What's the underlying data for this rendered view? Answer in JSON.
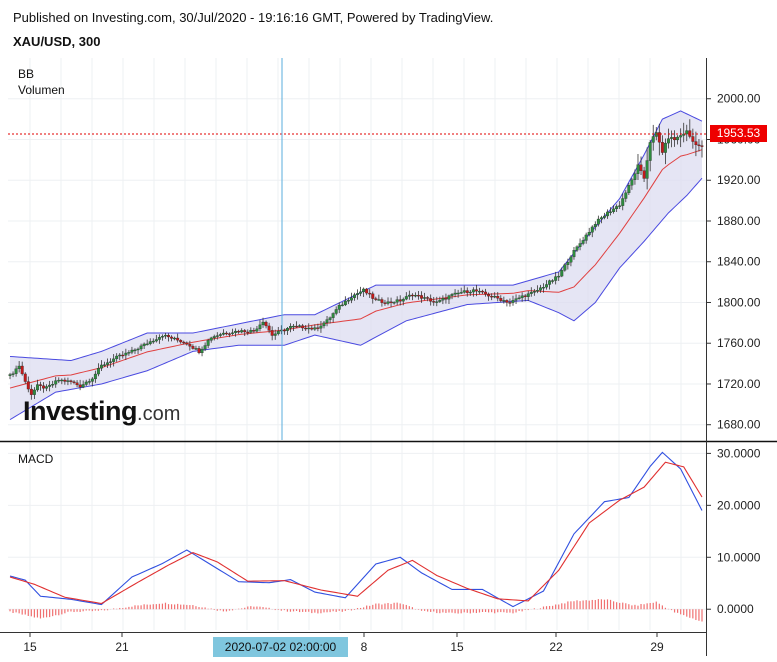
{
  "header": {
    "published": "Published on Investing.com, 30/Jul/2020 - 19:16:16 GMT, Powered by TradingView.",
    "symbol": "XAU/USD, 300"
  },
  "price_panel": {
    "indicator_1": "BB",
    "indicator_2": "Volumen",
    "current_price": "1953.53",
    "watermark_main": "Investing",
    "watermark_suffix": ".com"
  },
  "macd_panel": {
    "label": "MACD"
  },
  "crosshair": {
    "date_label": "2020-07-02 02:00:00"
  },
  "colors": {
    "up": "#2e8b3e",
    "down": "#c21b1b",
    "band": "#4a4ae0",
    "band_fill": "#dcdcf0",
    "basis": "#e04040",
    "macd": "#3050e0",
    "signal": "#e03030",
    "hist": "#f07070",
    "price_line": "#e00000"
  },
  "chart_data": [
    {
      "type": "candlestick",
      "title": "XAU/USD, 300",
      "indicators": [
        "BB",
        "Volumen"
      ],
      "y_ticks": [
        "1680.00",
        "1720.00",
        "1760.00",
        "1800.00",
        "1840.00",
        "1880.00",
        "1920.00",
        "1960.00",
        "2000.00"
      ],
      "ylim": [
        1665,
        2040
      ],
      "x_ticks": [
        "15",
        "21",
        "8",
        "15",
        "22",
        "29"
      ],
      "last_price": 1953.53,
      "close_anchors": [
        [
          0,
          1728
        ],
        [
          3,
          1738
        ],
        [
          5,
          1722
        ],
        [
          7,
          1710
        ],
        [
          9,
          1718
        ],
        [
          12,
          1716
        ],
        [
          16,
          1724
        ],
        [
          20,
          1722
        ],
        [
          23,
          1718
        ],
        [
          27,
          1726
        ],
        [
          30,
          1738
        ],
        [
          35,
          1746
        ],
        [
          40,
          1752
        ],
        [
          45,
          1760
        ],
        [
          50,
          1768
        ],
        [
          54,
          1764
        ],
        [
          58,
          1760
        ],
        [
          62,
          1752
        ],
        [
          66,
          1766
        ],
        [
          70,
          1770
        ],
        [
          75,
          1772
        ],
        [
          80,
          1772
        ],
        [
          83,
          1782
        ],
        [
          86,
          1768
        ],
        [
          89,
          1772
        ],
        [
          92,
          1776
        ],
        [
          96,
          1776
        ],
        [
          100,
          1774
        ],
        [
          104,
          1782
        ],
        [
          108,
          1796
        ],
        [
          112,
          1806
        ],
        [
          116,
          1812
        ],
        [
          120,
          1802
        ],
        [
          124,
          1800
        ],
        [
          128,
          1802
        ],
        [
          132,
          1808
        ],
        [
          136,
          1804
        ],
        [
          140,
          1800
        ],
        [
          144,
          1806
        ],
        [
          148,
          1810
        ],
        [
          152,
          1812
        ],
        [
          156,
          1808
        ],
        [
          160,
          1804
        ],
        [
          164,
          1800
        ],
        [
          168,
          1806
        ],
        [
          172,
          1810
        ],
        [
          176,
          1818
        ],
        [
          180,
          1826
        ],
        [
          184,
          1846
        ],
        [
          188,
          1862
        ],
        [
          192,
          1878
        ],
        [
          196,
          1888
        ],
        [
          200,
          1896
        ],
        [
          204,
          1920
        ],
        [
          206,
          1934
        ],
        [
          208,
          1922
        ],
        [
          210,
          1958
        ],
        [
          212,
          1966
        ],
        [
          214,
          1948
        ],
        [
          216,
          1962
        ],
        [
          218,
          1960
        ],
        [
          220,
          1964
        ],
        [
          222,
          1968
        ],
        [
          224,
          1958
        ],
        [
          226,
          1954
        ],
        [
          227,
          1953.53
        ]
      ],
      "bollinger_upper_anchors": [
        [
          0,
          1747
        ],
        [
          20,
          1743
        ],
        [
          30,
          1752
        ],
        [
          45,
          1770
        ],
        [
          60,
          1770
        ],
        [
          75,
          1779
        ],
        [
          90,
          1788
        ],
        [
          100,
          1788
        ],
        [
          120,
          1817
        ],
        [
          145,
          1817
        ],
        [
          165,
          1817
        ],
        [
          180,
          1830
        ],
        [
          190,
          1867
        ],
        [
          200,
          1902
        ],
        [
          208,
          1945
        ],
        [
          214,
          1980
        ],
        [
          220,
          1988
        ],
        [
          227,
          1978
        ]
      ],
      "bollinger_lower_anchors": [
        [
          0,
          1685
        ],
        [
          15,
          1712
        ],
        [
          30,
          1720
        ],
        [
          45,
          1733
        ],
        [
          60,
          1752
        ],
        [
          75,
          1758
        ],
        [
          90,
          1758
        ],
        [
          100,
          1768
        ],
        [
          115,
          1758
        ],
        [
          130,
          1782
        ],
        [
          150,
          1798
        ],
        [
          170,
          1802
        ],
        [
          180,
          1790
        ],
        [
          185,
          1782
        ],
        [
          192,
          1800
        ],
        [
          200,
          1834
        ],
        [
          208,
          1860
        ],
        [
          216,
          1888
        ],
        [
          222,
          1905
        ],
        [
          227,
          1922
        ]
      ]
    },
    {
      "type": "line",
      "title": "MACD",
      "y_ticks": [
        "0.0000",
        "10.0000",
        "20.0000",
        "30.0000"
      ],
      "ylim": [
        -4,
        32
      ],
      "series": [
        {
          "name": "MACD",
          "anchors": [
            [
              0,
              6.4
            ],
            [
              5,
              5.6
            ],
            [
              10,
              2.5
            ],
            [
              20,
              1.9
            ],
            [
              30,
              0.9
            ],
            [
              40,
              6.2
            ],
            [
              50,
              8.8
            ],
            [
              58,
              11.4
            ],
            [
              65,
              8.9
            ],
            [
              75,
              5.3
            ],
            [
              85,
              5.1
            ],
            [
              92,
              5.7
            ],
            [
              100,
              3.3
            ],
            [
              110,
              2.2
            ],
            [
              120,
              8.7
            ],
            [
              128,
              10.0
            ],
            [
              135,
              7.0
            ],
            [
              145,
              3.8
            ],
            [
              155,
              3.8
            ],
            [
              165,
              0.5
            ],
            [
              175,
              3.5
            ],
            [
              185,
              14.5
            ],
            [
              195,
              20.7
            ],
            [
              203,
              21.5
            ],
            [
              210,
              27.5
            ],
            [
              214,
              30.2
            ],
            [
              220,
              27.0
            ],
            [
              227,
              19.0
            ]
          ]
        },
        {
          "name": "Signal",
          "anchors": [
            [
              0,
              6.2
            ],
            [
              8,
              4.8
            ],
            [
              18,
              2.3
            ],
            [
              30,
              1.1
            ],
            [
              42,
              5.2
            ],
            [
              52,
              8.5
            ],
            [
              60,
              10.9
            ],
            [
              68,
              9.1
            ],
            [
              78,
              5.4
            ],
            [
              90,
              5.5
            ],
            [
              102,
              3.7
            ],
            [
              114,
              2.5
            ],
            [
              124,
              7.5
            ],
            [
              132,
              9.4
            ],
            [
              140,
              6.5
            ],
            [
              150,
              4.0
            ],
            [
              160,
              2.0
            ],
            [
              170,
              1.6
            ],
            [
              180,
              7.5
            ],
            [
              190,
              16.6
            ],
            [
              200,
              21.0
            ],
            [
              208,
              23.5
            ],
            [
              215,
              28.3
            ],
            [
              221,
              27.4
            ],
            [
              227,
              21.6
            ]
          ]
        },
        {
          "name": "Histogram",
          "anchors": [
            [
              0,
              -0.5
            ],
            [
              10,
              -1.8
            ],
            [
              20,
              -0.5
            ],
            [
              30,
              -0.3
            ],
            [
              40,
              0.6
            ],
            [
              50,
              1.2
            ],
            [
              60,
              0.8
            ],
            [
              70,
              -0.4
            ],
            [
              80,
              0.6
            ],
            [
              90,
              -0.3
            ],
            [
              100,
              -0.7
            ],
            [
              110,
              -0.4
            ],
            [
              120,
              1.0
            ],
            [
              128,
              1.2
            ],
            [
              135,
              -0.4
            ],
            [
              145,
              -0.8
            ],
            [
              155,
              -0.6
            ],
            [
              165,
              -0.7
            ],
            [
              175,
              0.4
            ],
            [
              185,
              1.6
            ],
            [
              195,
              1.9
            ],
            [
              205,
              0.7
            ],
            [
              212,
              1.4
            ],
            [
              218,
              -0.6
            ],
            [
              227,
              -2.4
            ]
          ]
        }
      ]
    }
  ]
}
